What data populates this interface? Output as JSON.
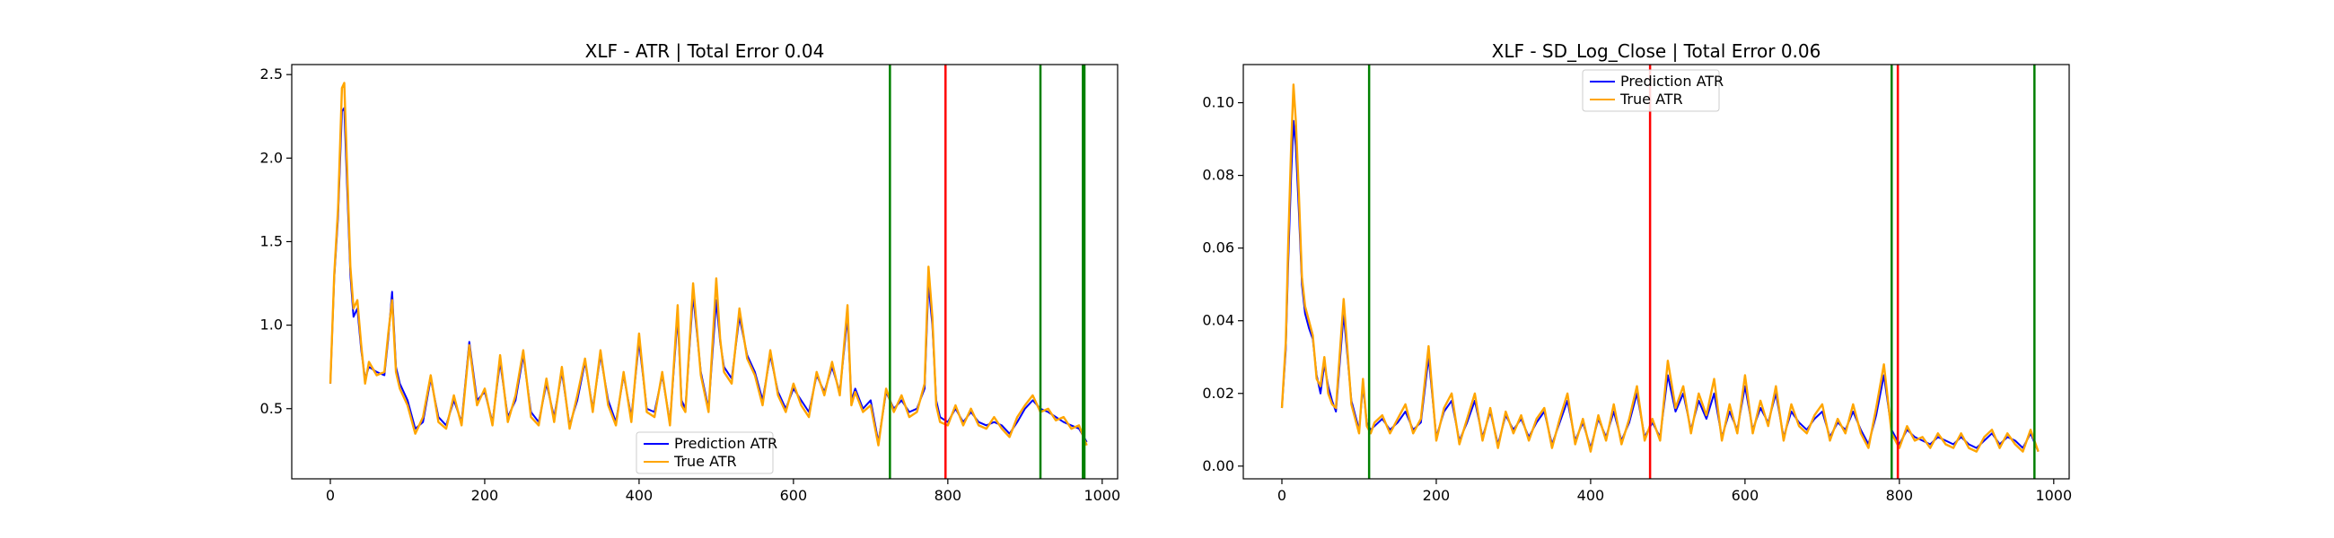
{
  "chart_data": [
    {
      "type": "line",
      "title": "XLF - ATR | Total Error 0.04",
      "xlabel": "",
      "ylabel": "",
      "xlim": [
        -50,
        1020
      ],
      "ylim": [
        0.08,
        2.56
      ],
      "xticks": [
        0,
        200,
        400,
        600,
        800,
        1000
      ],
      "yticks": [
        0.5,
        1.0,
        1.5,
        2.0,
        2.5
      ],
      "ytick_labels": [
        "0.5",
        "1.0",
        "1.5",
        "2.0",
        "2.5"
      ],
      "legend_position": "lower-center",
      "colors": {
        "prediction": "#0000ff",
        "true": "#ffa500",
        "vline_green": "#008000",
        "vline_red": "#ff0000"
      },
      "vlines": [
        {
          "x": 725,
          "color": "green"
        },
        {
          "x": 797,
          "color": "red"
        },
        {
          "x": 920,
          "color": "green"
        },
        {
          "x": 975,
          "color": "green"
        },
        {
          "x": 977,
          "color": "green"
        }
      ],
      "series": [
        {
          "name": "Prediction ATR",
          "x": [
            0,
            5,
            10,
            15,
            18,
            22,
            26,
            30,
            35,
            40,
            45,
            50,
            60,
            70,
            75,
            80,
            85,
            90,
            100,
            110,
            120,
            130,
            140,
            150,
            160,
            170,
            180,
            190,
            200,
            210,
            220,
            230,
            240,
            250,
            260,
            270,
            280,
            290,
            300,
            310,
            320,
            330,
            340,
            350,
            360,
            370,
            380,
            390,
            400,
            410,
            420,
            430,
            440,
            450,
            455,
            460,
            470,
            480,
            490,
            500,
            505,
            510,
            520,
            530,
            540,
            550,
            560,
            570,
            580,
            590,
            600,
            610,
            620,
            630,
            640,
            650,
            660,
            670,
            675,
            680,
            690,
            700,
            710,
            720,
            730,
            740,
            750,
            760,
            770,
            775,
            780,
            785,
            790,
            800,
            810,
            820,
            830,
            840,
            850,
            860,
            870,
            880,
            890,
            900,
            910,
            920,
            930,
            940,
            950,
            960,
            970,
            980
          ],
          "values": [
            0.65,
            1.28,
            1.65,
            2.28,
            2.3,
            1.8,
            1.3,
            1.05,
            1.1,
            0.85,
            0.68,
            0.75,
            0.72,
            0.7,
            0.92,
            1.2,
            0.75,
            0.65,
            0.55,
            0.38,
            0.42,
            0.68,
            0.45,
            0.4,
            0.55,
            0.42,
            0.9,
            0.55,
            0.6,
            0.42,
            0.78,
            0.45,
            0.55,
            0.82,
            0.48,
            0.42,
            0.65,
            0.45,
            0.72,
            0.4,
            0.55,
            0.78,
            0.5,
            0.82,
            0.55,
            0.42,
            0.7,
            0.45,
            0.9,
            0.5,
            0.48,
            0.7,
            0.42,
            1.05,
            0.55,
            0.5,
            1.18,
            0.72,
            0.5,
            1.15,
            0.9,
            0.75,
            0.68,
            1.05,
            0.82,
            0.72,
            0.55,
            0.82,
            0.6,
            0.5,
            0.62,
            0.55,
            0.48,
            0.7,
            0.6,
            0.75,
            0.6,
            1.05,
            0.55,
            0.62,
            0.5,
            0.55,
            0.3,
            0.6,
            0.5,
            0.55,
            0.48,
            0.5,
            0.62,
            1.25,
            1.0,
            0.55,
            0.45,
            0.42,
            0.5,
            0.42,
            0.48,
            0.42,
            0.4,
            0.42,
            0.4,
            0.35,
            0.42,
            0.5,
            0.55,
            0.5,
            0.48,
            0.45,
            0.42,
            0.4,
            0.38,
            0.3
          ],
          "color": "#0000ff"
        },
        {
          "name": "True ATR",
          "x": [
            0,
            5,
            10,
            15,
            18,
            22,
            26,
            30,
            35,
            40,
            45,
            50,
            60,
            70,
            75,
            80,
            85,
            90,
            100,
            110,
            120,
            130,
            140,
            150,
            160,
            170,
            180,
            190,
            200,
            210,
            220,
            230,
            240,
            250,
            260,
            270,
            280,
            290,
            300,
            310,
            320,
            330,
            340,
            350,
            360,
            370,
            380,
            390,
            400,
            410,
            420,
            430,
            440,
            450,
            455,
            460,
            470,
            480,
            490,
            500,
            505,
            510,
            520,
            530,
            540,
            550,
            560,
            570,
            580,
            590,
            600,
            610,
            620,
            630,
            640,
            650,
            660,
            670,
            675,
            680,
            690,
            700,
            710,
            720,
            730,
            740,
            750,
            760,
            770,
            775,
            780,
            785,
            790,
            800,
            810,
            820,
            830,
            840,
            850,
            860,
            870,
            880,
            890,
            900,
            910,
            920,
            930,
            940,
            950,
            960,
            970,
            980
          ],
          "values": [
            0.65,
            1.3,
            1.7,
            2.42,
            2.45,
            1.9,
            1.35,
            1.1,
            1.15,
            0.88,
            0.65,
            0.78,
            0.7,
            0.72,
            0.95,
            1.15,
            0.72,
            0.62,
            0.52,
            0.35,
            0.45,
            0.7,
            0.42,
            0.38,
            0.58,
            0.4,
            0.88,
            0.52,
            0.62,
            0.4,
            0.82,
            0.42,
            0.58,
            0.85,
            0.45,
            0.4,
            0.68,
            0.42,
            0.75,
            0.38,
            0.58,
            0.8,
            0.48,
            0.85,
            0.52,
            0.4,
            0.72,
            0.42,
            0.95,
            0.48,
            0.45,
            0.72,
            0.4,
            1.12,
            0.52,
            0.48,
            1.25,
            0.7,
            0.48,
            1.28,
            0.92,
            0.72,
            0.65,
            1.1,
            0.8,
            0.7,
            0.52,
            0.85,
            0.58,
            0.48,
            0.65,
            0.52,
            0.45,
            0.72,
            0.58,
            0.78,
            0.58,
            1.12,
            0.52,
            0.6,
            0.48,
            0.52,
            0.28,
            0.62,
            0.48,
            0.58,
            0.45,
            0.48,
            0.65,
            1.35,
            1.05,
            0.52,
            0.42,
            0.4,
            0.52,
            0.4,
            0.5,
            0.4,
            0.38,
            0.45,
            0.38,
            0.33,
            0.45,
            0.52,
            0.58,
            0.48,
            0.5,
            0.43,
            0.45,
            0.38,
            0.4,
            0.28
          ],
          "color": "#ffa500"
        }
      ]
    },
    {
      "type": "line",
      "title": "XLF - SD_Log_Close | Total Error 0.06",
      "xlabel": "",
      "ylabel": "",
      "xlim": [
        -50,
        1020
      ],
      "ylim": [
        -0.0035,
        0.1105
      ],
      "xticks": [
        0,
        200,
        400,
        600,
        800,
        1000
      ],
      "yticks": [
        0.0,
        0.02,
        0.04,
        0.06,
        0.08,
        0.1
      ],
      "ytick_labels": [
        "0.00",
        "0.02",
        "0.04",
        "0.06",
        "0.08",
        "0.10"
      ],
      "legend_position": "upper-center",
      "colors": {
        "prediction": "#0000ff",
        "true": "#ffa500",
        "vline_green": "#008000",
        "vline_red": "#ff0000"
      },
      "vlines": [
        {
          "x": 113,
          "color": "green"
        },
        {
          "x": 477,
          "color": "red"
        },
        {
          "x": 790,
          "color": "green"
        },
        {
          "x": 798,
          "color": "red"
        },
        {
          "x": 975,
          "color": "green"
        }
      ],
      "series": [
        {
          "name": "Prediction ATR",
          "x": [
            0,
            5,
            8,
            12,
            15,
            18,
            22,
            26,
            30,
            35,
            40,
            45,
            50,
            55,
            60,
            65,
            70,
            80,
            90,
            100,
            105,
            110,
            115,
            120,
            130,
            140,
            150,
            160,
            170,
            180,
            190,
            200,
            210,
            220,
            230,
            240,
            250,
            260,
            270,
            280,
            290,
            300,
            310,
            320,
            330,
            340,
            350,
            360,
            370,
            380,
            390,
            400,
            410,
            420,
            430,
            440,
            450,
            460,
            470,
            480,
            490,
            500,
            510,
            520,
            530,
            540,
            550,
            560,
            570,
            580,
            590,
            600,
            610,
            620,
            630,
            640,
            650,
            660,
            670,
            680,
            690,
            700,
            710,
            720,
            730,
            740,
            750,
            760,
            770,
            780,
            790,
            800,
            810,
            820,
            830,
            840,
            850,
            860,
            870,
            880,
            890,
            900,
            910,
            920,
            930,
            940,
            950,
            960,
            970,
            980
          ],
          "values": [
            0.016,
            0.032,
            0.055,
            0.08,
            0.095,
            0.088,
            0.07,
            0.05,
            0.042,
            0.038,
            0.035,
            0.025,
            0.02,
            0.028,
            0.022,
            0.018,
            0.015,
            0.042,
            0.018,
            0.01,
            0.022,
            0.012,
            0.01,
            0.011,
            0.013,
            0.01,
            0.012,
            0.015,
            0.01,
            0.012,
            0.03,
            0.008,
            0.015,
            0.018,
            0.007,
            0.012,
            0.018,
            0.008,
            0.015,
            0.006,
            0.014,
            0.01,
            0.013,
            0.008,
            0.012,
            0.015,
            0.006,
            0.012,
            0.018,
            0.007,
            0.012,
            0.005,
            0.013,
            0.008,
            0.015,
            0.007,
            0.012,
            0.02,
            0.008,
            0.012,
            0.008,
            0.025,
            0.015,
            0.02,
            0.01,
            0.018,
            0.013,
            0.02,
            0.008,
            0.015,
            0.01,
            0.022,
            0.01,
            0.016,
            0.012,
            0.02,
            0.008,
            0.015,
            0.012,
            0.01,
            0.013,
            0.015,
            0.008,
            0.012,
            0.01,
            0.015,
            0.01,
            0.006,
            0.014,
            0.025,
            0.01,
            0.006,
            0.01,
            0.008,
            0.007,
            0.006,
            0.008,
            0.007,
            0.006,
            0.008,
            0.006,
            0.005,
            0.007,
            0.009,
            0.006,
            0.008,
            0.007,
            0.005,
            0.009,
            0.004
          ],
          "color": "#0000ff"
        },
        {
          "name": "True ATR",
          "x": [
            0,
            5,
            8,
            12,
            15,
            18,
            22,
            26,
            30,
            35,
            40,
            45,
            50,
            55,
            60,
            65,
            70,
            80,
            90,
            100,
            105,
            110,
            115,
            120,
            130,
            140,
            150,
            160,
            170,
            180,
            190,
            200,
            210,
            220,
            230,
            240,
            250,
            260,
            270,
            280,
            290,
            300,
            310,
            320,
            330,
            340,
            350,
            360,
            370,
            380,
            390,
            400,
            410,
            420,
            430,
            440,
            450,
            460,
            470,
            480,
            490,
            500,
            510,
            520,
            530,
            540,
            550,
            560,
            570,
            580,
            590,
            600,
            610,
            620,
            630,
            640,
            650,
            660,
            670,
            680,
            690,
            700,
            710,
            720,
            730,
            740,
            750,
            760,
            770,
            780,
            790,
            800,
            810,
            820,
            830,
            840,
            850,
            860,
            870,
            880,
            890,
            900,
            910,
            920,
            930,
            940,
            950,
            960,
            970,
            980
          ],
          "values": [
            0.016,
            0.034,
            0.06,
            0.088,
            0.105,
            0.095,
            0.075,
            0.052,
            0.044,
            0.04,
            0.036,
            0.024,
            0.022,
            0.03,
            0.02,
            0.017,
            0.016,
            0.046,
            0.017,
            0.009,
            0.024,
            0.011,
            0.009,
            0.012,
            0.014,
            0.009,
            0.013,
            0.017,
            0.009,
            0.013,
            0.033,
            0.007,
            0.016,
            0.02,
            0.006,
            0.013,
            0.02,
            0.007,
            0.016,
            0.005,
            0.015,
            0.009,
            0.014,
            0.007,
            0.013,
            0.016,
            0.005,
            0.013,
            0.02,
            0.006,
            0.013,
            0.004,
            0.014,
            0.007,
            0.017,
            0.006,
            0.013,
            0.022,
            0.007,
            0.013,
            0.007,
            0.029,
            0.016,
            0.022,
            0.009,
            0.02,
            0.014,
            0.024,
            0.007,
            0.017,
            0.009,
            0.025,
            0.009,
            0.018,
            0.011,
            0.022,
            0.007,
            0.017,
            0.011,
            0.009,
            0.014,
            0.017,
            0.007,
            0.013,
            0.009,
            0.017,
            0.009,
            0.005,
            0.016,
            0.028,
            0.009,
            0.005,
            0.011,
            0.007,
            0.008,
            0.005,
            0.009,
            0.006,
            0.005,
            0.009,
            0.005,
            0.004,
            0.008,
            0.01,
            0.005,
            0.009,
            0.006,
            0.004,
            0.01,
            0.004
          ],
          "color": "#ffa500"
        }
      ]
    }
  ]
}
